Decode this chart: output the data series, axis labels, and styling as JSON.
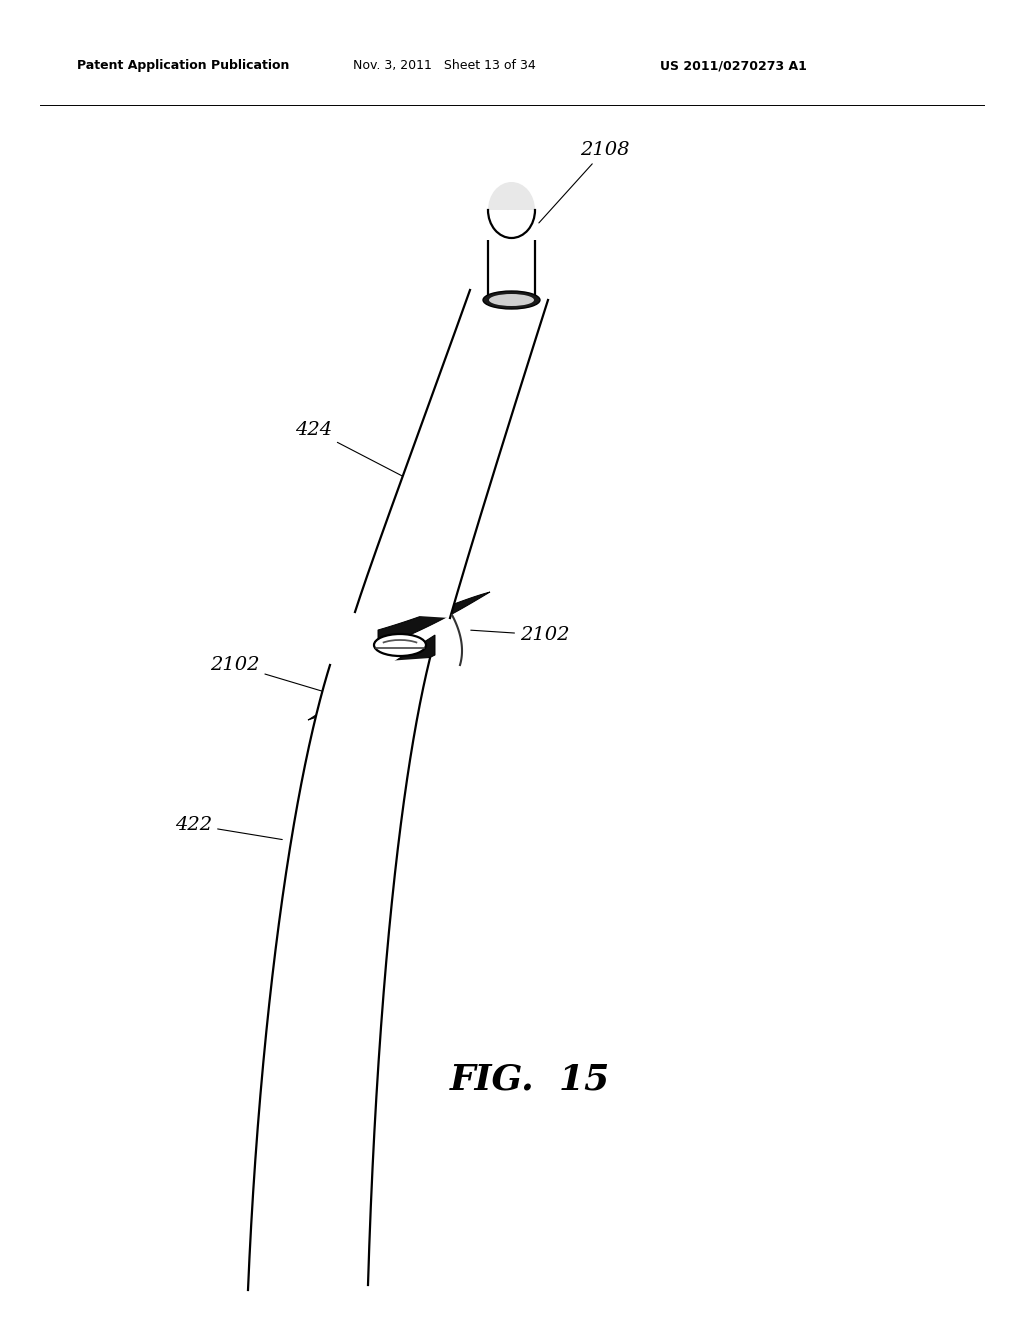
{
  "background_color": "#ffffff",
  "header_left": "Patent Application Publication",
  "header_center": "Nov. 3, 2011   Sheet 13 of 34",
  "header_right": "US 2011/0270273 A1",
  "fig_label": "FIG.  15",
  "line_color": "#000000",
  "line_width": 1.6
}
